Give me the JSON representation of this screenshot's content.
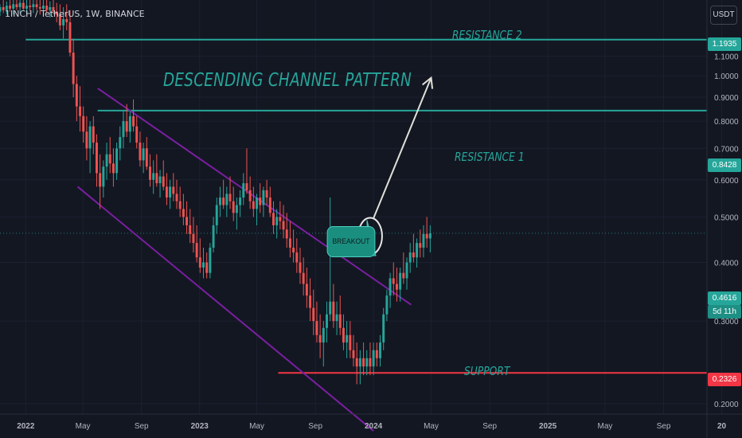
{
  "header": {
    "symbol_line": "1INCH / TetherUS, 1W, BINANCE",
    "unit": "USDT"
  },
  "annotations": {
    "title": "DESCENDING CHANNEL PATTERN",
    "resistance2": "RESISTANCE 2",
    "resistance1": "RESISTANCE 1",
    "support": "SUPPORT",
    "breakout": "BREAKOUT"
  },
  "price_tags": {
    "resistance2": "1.1935",
    "resistance1": "0.8428",
    "current": "0.4616",
    "countdown": "5d 11h",
    "support": "0.2326"
  },
  "colors": {
    "up": "#26a69a",
    "down": "#ef5350",
    "channel": "#7b1fa2",
    "support": "#f23645",
    "resistance": "#26a69a",
    "background": "#131722"
  },
  "chart_data": {
    "type": "candlestick",
    "scale": "log",
    "ylim": [
      0.19,
      1.45
    ],
    "xlim": [
      "2021-11-08",
      "2025-12-01"
    ],
    "x_ticks": [
      {
        "date": "2022-01-01",
        "label": "2022"
      },
      {
        "date": "2022-05-01",
        "label": "May"
      },
      {
        "date": "2022-09-01",
        "label": "Sep"
      },
      {
        "date": "2023-01-01",
        "label": "2023"
      },
      {
        "date": "2023-05-01",
        "label": "May"
      },
      {
        "date": "2023-09-01",
        "label": "Sep"
      },
      {
        "date": "2024-01-01",
        "label": "2024"
      },
      {
        "date": "2024-05-01",
        "label": "May"
      },
      {
        "date": "2024-09-01",
        "label": "Sep"
      },
      {
        "date": "2025-01-01",
        "label": "2025"
      },
      {
        "date": "2025-05-01",
        "label": "May"
      },
      {
        "date": "2025-09-01",
        "label": "Sep"
      },
      {
        "date": "2026-01-01",
        "label": "20"
      }
    ],
    "y_ticks": [
      0.2,
      0.3,
      0.4,
      0.5,
      0.6,
      0.7,
      0.8,
      0.9,
      1.0,
      1.1
    ],
    "levels": [
      {
        "name": "RESISTANCE 2",
        "value": 1.1935,
        "start": "2022-01-01"
      },
      {
        "name": "RESISTANCE 1",
        "value": 0.8428,
        "start": "2022-06-01"
      },
      {
        "name": "SUPPORT",
        "value": 0.2326,
        "start": "2023-06-15"
      }
    ],
    "channel": {
      "upper": [
        {
          "x": "2022-06-01",
          "y": 0.94
        },
        {
          "x": "2024-03-20",
          "y": 0.325
        }
      ],
      "lower": [
        {
          "x": "2022-04-20",
          "y": 0.58
        },
        {
          "x": "2024-01-01",
          "y": 0.175
        }
      ]
    },
    "projection_target": {
      "x": "2024-05-01",
      "y": 0.99
    },
    "breakout_circle": {
      "x": "2023-12-25",
      "y": 0.455
    },
    "current_price": 0.4616,
    "candles_start": "2021-11-08",
    "candles": [
      [
        1.37,
        1.42,
        1.34,
        1.4
      ],
      [
        1.4,
        1.45,
        1.36,
        1.38
      ],
      [
        1.38,
        1.44,
        1.35,
        1.41
      ],
      [
        1.41,
        1.45,
        1.37,
        1.39
      ],
      [
        1.39,
        1.45,
        1.35,
        1.42
      ],
      [
        1.42,
        1.45,
        1.38,
        1.4
      ],
      [
        1.4,
        1.45,
        1.36,
        1.43
      ],
      [
        1.43,
        1.45,
        1.38,
        1.39
      ],
      [
        1.39,
        1.45,
        1.35,
        1.41
      ],
      [
        1.41,
        1.45,
        1.37,
        1.4
      ],
      [
        1.4,
        1.45,
        1.36,
        1.42
      ],
      [
        1.42,
        1.45,
        1.38,
        1.4
      ],
      [
        1.4,
        1.45,
        1.35,
        1.39
      ],
      [
        1.39,
        1.45,
        1.34,
        1.41
      ],
      [
        1.41,
        1.45,
        1.36,
        1.38
      ],
      [
        1.38,
        1.44,
        1.33,
        1.4
      ],
      [
        1.4,
        1.45,
        1.35,
        1.37
      ],
      [
        1.37,
        1.43,
        1.3,
        1.35
      ],
      [
        1.35,
        1.42,
        1.25,
        1.28
      ],
      [
        1.28,
        1.4,
        1.2,
        1.32
      ],
      [
        1.32,
        1.42,
        1.25,
        1.3
      ],
      [
        1.3,
        1.38,
        1.1,
        1.12
      ],
      [
        1.12,
        1.2,
        0.9,
        0.96
      ],
      [
        0.96,
        1.0,
        0.8,
        0.86
      ],
      [
        0.86,
        0.95,
        0.76,
        0.82
      ],
      [
        0.82,
        0.86,
        0.72,
        0.76
      ],
      [
        0.76,
        0.82,
        0.66,
        0.7
      ],
      [
        0.7,
        0.8,
        0.62,
        0.78
      ],
      [
        0.78,
        0.82,
        0.68,
        0.72
      ],
      [
        0.72,
        0.75,
        0.58,
        0.62
      ],
      [
        0.62,
        0.68,
        0.52,
        0.58
      ],
      [
        0.58,
        0.66,
        0.55,
        0.64
      ],
      [
        0.64,
        0.72,
        0.6,
        0.68
      ],
      [
        0.68,
        0.74,
        0.62,
        0.65
      ],
      [
        0.65,
        0.7,
        0.58,
        0.62
      ],
      [
        0.62,
        0.72,
        0.6,
        0.7
      ],
      [
        0.7,
        0.78,
        0.66,
        0.74
      ],
      [
        0.74,
        0.84,
        0.7,
        0.8
      ],
      [
        0.8,
        0.87,
        0.74,
        0.76
      ],
      [
        0.76,
        0.84,
        0.72,
        0.82
      ],
      [
        0.82,
        0.89,
        0.76,
        0.78
      ],
      [
        0.78,
        0.82,
        0.7,
        0.72
      ],
      [
        0.72,
        0.76,
        0.64,
        0.66
      ],
      [
        0.66,
        0.72,
        0.62,
        0.7
      ],
      [
        0.7,
        0.74,
        0.63,
        0.64
      ],
      [
        0.64,
        0.68,
        0.58,
        0.6
      ],
      [
        0.6,
        0.66,
        0.56,
        0.62
      ],
      [
        0.62,
        0.68,
        0.58,
        0.59
      ],
      [
        0.59,
        0.63,
        0.55,
        0.61
      ],
      [
        0.61,
        0.66,
        0.57,
        0.58
      ],
      [
        0.58,
        0.62,
        0.53,
        0.55
      ],
      [
        0.55,
        0.6,
        0.52,
        0.58
      ],
      [
        0.58,
        0.62,
        0.54,
        0.56
      ],
      [
        0.56,
        0.6,
        0.52,
        0.54
      ],
      [
        0.54,
        0.58,
        0.5,
        0.52
      ],
      [
        0.52,
        0.56,
        0.48,
        0.5
      ],
      [
        0.5,
        0.54,
        0.46,
        0.48
      ],
      [
        0.48,
        0.52,
        0.44,
        0.46
      ],
      [
        0.46,
        0.5,
        0.42,
        0.44
      ],
      [
        0.44,
        0.48,
        0.4,
        0.41
      ],
      [
        0.41,
        0.45,
        0.38,
        0.39
      ],
      [
        0.39,
        0.43,
        0.37,
        0.4
      ],
      [
        0.4,
        0.42,
        0.37,
        0.38
      ],
      [
        0.38,
        0.44,
        0.37,
        0.43
      ],
      [
        0.43,
        0.5,
        0.42,
        0.48
      ],
      [
        0.48,
        0.55,
        0.46,
        0.53
      ],
      [
        0.53,
        0.58,
        0.5,
        0.55
      ],
      [
        0.55,
        0.6,
        0.52,
        0.53
      ],
      [
        0.53,
        0.58,
        0.5,
        0.56
      ],
      [
        0.56,
        0.61,
        0.52,
        0.54
      ],
      [
        0.54,
        0.58,
        0.49,
        0.51
      ],
      [
        0.51,
        0.55,
        0.47,
        0.53
      ],
      [
        0.53,
        0.57,
        0.5,
        0.55
      ],
      [
        0.55,
        0.62,
        0.53,
        0.59
      ],
      [
        0.59,
        0.7,
        0.56,
        0.57
      ],
      [
        0.57,
        0.61,
        0.52,
        0.54
      ],
      [
        0.54,
        0.58,
        0.5,
        0.52
      ],
      [
        0.52,
        0.56,
        0.48,
        0.55
      ],
      [
        0.55,
        0.59,
        0.51,
        0.53
      ],
      [
        0.53,
        0.58,
        0.5,
        0.57
      ],
      [
        0.57,
        0.6,
        0.53,
        0.55
      ],
      [
        0.55,
        0.58,
        0.5,
        0.51
      ],
      [
        0.51,
        0.54,
        0.46,
        0.48
      ],
      [
        0.48,
        0.52,
        0.45,
        0.5
      ],
      [
        0.5,
        0.54,
        0.47,
        0.49
      ],
      [
        0.49,
        0.53,
        0.45,
        0.47
      ],
      [
        0.47,
        0.51,
        0.43,
        0.45
      ],
      [
        0.45,
        0.49,
        0.41,
        0.43
      ],
      [
        0.43,
        0.47,
        0.4,
        0.42
      ],
      [
        0.42,
        0.45,
        0.38,
        0.4
      ],
      [
        0.4,
        0.43,
        0.36,
        0.38
      ],
      [
        0.38,
        0.41,
        0.34,
        0.36
      ],
      [
        0.36,
        0.39,
        0.32,
        0.34
      ],
      [
        0.34,
        0.37,
        0.3,
        0.32
      ],
      [
        0.32,
        0.35,
        0.28,
        0.3
      ],
      [
        0.3,
        0.33,
        0.27,
        0.28
      ],
      [
        0.28,
        0.31,
        0.25,
        0.27
      ],
      [
        0.27,
        0.3,
        0.24,
        0.29
      ],
      [
        0.29,
        0.33,
        0.27,
        0.31
      ],
      [
        0.31,
        0.55,
        0.3,
        0.33
      ],
      [
        0.33,
        0.36,
        0.29,
        0.3
      ],
      [
        0.3,
        0.33,
        0.28,
        0.31
      ],
      [
        0.31,
        0.34,
        0.28,
        0.29
      ],
      [
        0.29,
        0.31,
        0.26,
        0.27
      ],
      [
        0.27,
        0.3,
        0.25,
        0.28
      ],
      [
        0.28,
        0.3,
        0.25,
        0.26
      ],
      [
        0.26,
        0.28,
        0.24,
        0.25
      ],
      [
        0.25,
        0.27,
        0.22,
        0.24
      ],
      [
        0.24,
        0.26,
        0.22,
        0.25
      ],
      [
        0.25,
        0.27,
        0.23,
        0.24
      ],
      [
        0.24,
        0.26,
        0.23,
        0.25
      ],
      [
        0.25,
        0.27,
        0.23,
        0.24
      ],
      [
        0.24,
        0.27,
        0.23,
        0.26
      ],
      [
        0.26,
        0.27,
        0.24,
        0.25
      ],
      [
        0.25,
        0.28,
        0.24,
        0.27
      ],
      [
        0.27,
        0.32,
        0.26,
        0.31
      ],
      [
        0.31,
        0.35,
        0.3,
        0.34
      ],
      [
        0.34,
        0.38,
        0.32,
        0.37
      ],
      [
        0.37,
        0.4,
        0.34,
        0.36
      ],
      [
        0.36,
        0.39,
        0.33,
        0.35
      ],
      [
        0.35,
        0.39,
        0.33,
        0.38
      ],
      [
        0.38,
        0.42,
        0.36,
        0.37
      ],
      [
        0.37,
        0.41,
        0.35,
        0.4
      ],
      [
        0.4,
        0.44,
        0.38,
        0.42
      ],
      [
        0.42,
        0.46,
        0.4,
        0.41
      ],
      [
        0.41,
        0.45,
        0.39,
        0.44
      ],
      [
        0.44,
        0.47,
        0.41,
        0.43
      ],
      [
        0.43,
        0.48,
        0.41,
        0.46
      ],
      [
        0.46,
        0.5,
        0.43,
        0.45
      ],
      [
        0.45,
        0.48,
        0.42,
        0.4616
      ]
    ]
  }
}
